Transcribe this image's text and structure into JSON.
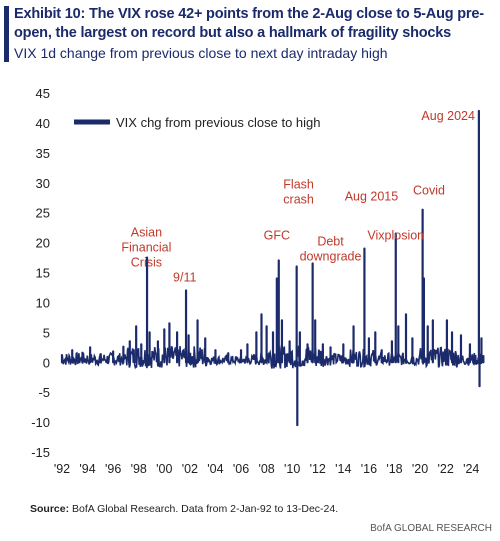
{
  "header": {
    "title": "Exhibit 10: The VIX rose 42+ points from the 2-Aug close to 5-Aug pre-open, the largest on record but also a hallmark of fragility shocks",
    "subtitle": "VIX 1d change from previous close to next day intraday high"
  },
  "footer": {
    "source_label": "Source:",
    "source_text": " BofA Global Research. Data from 2-Jan-92 to 13-Dec-24.",
    "brand": "BofA GLOBAL RESEARCH"
  },
  "colors": {
    "series": "#1b2a6b",
    "annotation": "#c0392b",
    "axis_text": "#222222"
  },
  "chart_data": {
    "type": "line",
    "ylim": [
      -15,
      45
    ],
    "yticks": [
      45,
      40,
      35,
      30,
      25,
      20,
      15,
      10,
      5,
      0,
      -5,
      -10,
      -15
    ],
    "xlim": [
      1992,
      2025
    ],
    "xticks": [
      {
        "year": 1992,
        "label": "'92"
      },
      {
        "year": 1994,
        "label": "'94"
      },
      {
        "year": 1996,
        "label": "'96"
      },
      {
        "year": 1998,
        "label": "'98"
      },
      {
        "year": 2000,
        "label": "'00"
      },
      {
        "year": 2002,
        "label": "'02"
      },
      {
        "year": 2004,
        "label": "'04"
      },
      {
        "year": 2006,
        "label": "'06"
      },
      {
        "year": 2008,
        "label": "'08"
      },
      {
        "year": 2010,
        "label": "'10"
      },
      {
        "year": 2012,
        "label": "'12"
      },
      {
        "year": 2014,
        "label": "'14"
      },
      {
        "year": 2016,
        "label": "'16"
      },
      {
        "year": 2018,
        "label": "'18"
      },
      {
        "year": 2020,
        "label": "'20"
      },
      {
        "year": 2022,
        "label": "'22"
      },
      {
        "year": 2024,
        "label": "'24"
      }
    ],
    "legend": "VIX chg from previous close to high",
    "legend_position": "top-left",
    "grid": false,
    "series": [
      {
        "name": "VIX chg from previous close to high",
        "points": [
          [
            1992.0,
            1.2
          ],
          [
            1992.8,
            2.0
          ],
          [
            1993.6,
            1.6
          ],
          [
            1994.2,
            2.5
          ],
          [
            1995.0,
            1.3
          ],
          [
            1996.0,
            1.8
          ],
          [
            1996.8,
            2.6
          ],
          [
            1997.3,
            3.5
          ],
          [
            1997.8,
            6.0
          ],
          [
            1998.2,
            3.0
          ],
          [
            1998.65,
            17.5
          ],
          [
            1998.85,
            5.0
          ],
          [
            1999.5,
            3.5
          ],
          [
            2000.0,
            5.5
          ],
          [
            2000.4,
            6.5
          ],
          [
            2001.0,
            5.0
          ],
          [
            2001.7,
            12.0
          ],
          [
            2001.9,
            4.5
          ],
          [
            2002.6,
            7.0
          ],
          [
            2003.2,
            4.0
          ],
          [
            2004.0,
            2.0
          ],
          [
            2005.0,
            1.5
          ],
          [
            2006.0,
            2.0
          ],
          [
            2006.5,
            3.0
          ],
          [
            2007.2,
            5.0
          ],
          [
            2007.6,
            8.0
          ],
          [
            2008.0,
            6.0
          ],
          [
            2008.5,
            5.0
          ],
          [
            2008.8,
            14.0
          ],
          [
            2008.95,
            17.0
          ],
          [
            2009.2,
            7.0
          ],
          [
            2009.8,
            3.5
          ],
          [
            2010.35,
            16.0
          ],
          [
            2010.4,
            -10.5
          ],
          [
            2010.6,
            5.0
          ],
          [
            2011.2,
            3.0
          ],
          [
            2011.6,
            16.5
          ],
          [
            2011.8,
            7.0
          ],
          [
            2012.4,
            3.0
          ],
          [
            2013.0,
            2.5
          ],
          [
            2014.0,
            3.0
          ],
          [
            2014.8,
            6.0
          ],
          [
            2015.65,
            19.0
          ],
          [
            2016.0,
            4.0
          ],
          [
            2016.5,
            5.0
          ],
          [
            2017.0,
            2.0
          ],
          [
            2017.8,
            3.5
          ],
          [
            2018.1,
            21.5
          ],
          [
            2018.3,
            6.0
          ],
          [
            2018.9,
            8.0
          ],
          [
            2019.4,
            4.0
          ],
          [
            2020.2,
            25.5
          ],
          [
            2020.3,
            14.0
          ],
          [
            2020.6,
            6.0
          ],
          [
            2021.0,
            7.0
          ],
          [
            2022.1,
            7.0
          ],
          [
            2022.5,
            5.0
          ],
          [
            2023.2,
            4.5
          ],
          [
            2023.9,
            3.0
          ],
          [
            2024.6,
            42.0
          ],
          [
            2024.65,
            -4.0
          ],
          [
            2024.8,
            4.0
          ],
          [
            2024.95,
            1.0
          ]
        ]
      }
    ],
    "annotations": [
      {
        "text": [
          "Asian",
          "Financial",
          "Crisis"
        ],
        "x": 1998.6,
        "y": 21.0
      },
      {
        "text": [
          "9/11"
        ],
        "x": 2001.6,
        "y": 13.5
      },
      {
        "text": [
          "GFC"
        ],
        "x": 2008.8,
        "y": 20.5
      },
      {
        "text": [
          "Flash",
          "crash"
        ],
        "x": 2010.5,
        "y": 29.0
      },
      {
        "text": [
          "Debt",
          "downgrade"
        ],
        "x": 2013.0,
        "y": 19.5
      },
      {
        "text": [
          "Aug 2015"
        ],
        "x": 2016.2,
        "y": 27.0
      },
      {
        "text": [
          "Vixplosion"
        ],
        "x": 2018.1,
        "y": 20.5
      },
      {
        "text": [
          "Covid"
        ],
        "x": 2020.7,
        "y": 28.0
      },
      {
        "text": [
          "Aug 2024"
        ],
        "x": 2022.2,
        "y": 40.5
      }
    ]
  }
}
